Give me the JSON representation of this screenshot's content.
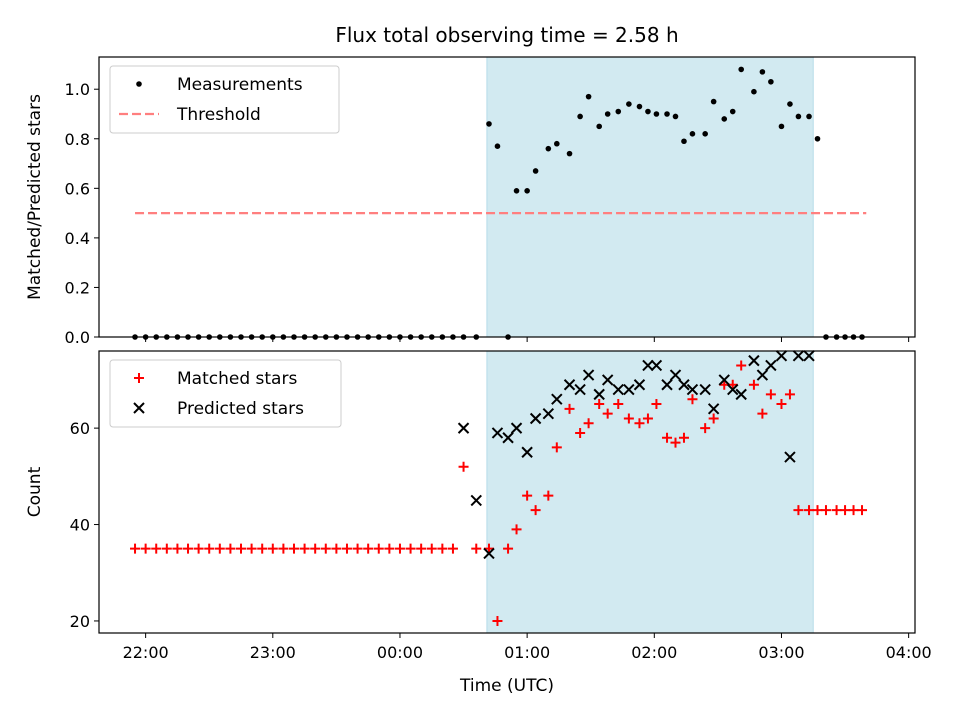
{
  "title": "Flux total observing time = 2.58 h",
  "xlabel": "Time (UTC)",
  "x_tick_labels": [
    "22:00",
    "23:00",
    "00:00",
    "01:00",
    "02:00",
    "03:00",
    "04:00"
  ],
  "colors": {
    "shade": "#add8e6",
    "threshold": "#ff7f7f",
    "matched": "#ff0000",
    "predicted": "#000000",
    "measurement": "#000000"
  },
  "chart_data": [
    {
      "type": "scatter",
      "ylabel": "Matched/Predicted stars",
      "xlim": [
        "21:38",
        "04:03"
      ],
      "ylim": [
        0,
        1.13
      ],
      "y_ticks": [
        "0.0",
        "0.2",
        "0.4",
        "0.6",
        "0.8",
        "1.0"
      ],
      "shaded_span": [
        "00:41",
        "03:15"
      ],
      "legend_position": "upper-left",
      "series": [
        {
          "name": "Measurements",
          "marker": "dot",
          "x": [
            "21:55",
            "22:00",
            "22:05",
            "22:10",
            "22:15",
            "22:20",
            "22:25",
            "22:30",
            "22:35",
            "22:40",
            "22:45",
            "22:50",
            "22:55",
            "23:00",
            "23:05",
            "23:10",
            "23:15",
            "23:20",
            "23:25",
            "23:30",
            "23:35",
            "23:40",
            "23:45",
            "23:50",
            "23:55",
            "00:00",
            "00:05",
            "00:10",
            "00:15",
            "00:20",
            "00:25",
            "00:30",
            "00:36",
            "00:42",
            "00:46",
            "00:51",
            "00:55",
            "01:00",
            "01:04",
            "01:10",
            "01:14",
            "01:20",
            "01:25",
            "01:29",
            "01:34",
            "01:38",
            "01:43",
            "01:48",
            "01:53",
            "01:57",
            "02:01",
            "02:06",
            "02:10",
            "02:14",
            "02:18",
            "02:24",
            "02:28",
            "02:33",
            "02:37",
            "02:41",
            "02:47",
            "02:51",
            "02:55",
            "03:00",
            "03:04",
            "03:08",
            "03:13",
            "03:17",
            "03:21",
            "03:26",
            "03:30",
            "03:34",
            "03:38"
          ],
          "y": [
            0,
            0,
            0,
            0,
            0,
            0,
            0,
            0,
            0,
            0,
            0,
            0,
            0,
            0,
            0,
            0,
            0,
            0,
            0,
            0,
            0,
            0,
            0,
            0,
            0,
            0,
            0,
            0,
            0,
            0,
            0,
            0,
            0,
            0.86,
            0.77,
            0,
            0.59,
            0.59,
            0.67,
            0.76,
            0.78,
            0.74,
            0.89,
            0.97,
            0.85,
            0.9,
            0.91,
            0.94,
            0.93,
            0.91,
            0.9,
            0.9,
            0.89,
            0.79,
            0.82,
            0.82,
            0.95,
            0.88,
            0.91,
            1.08,
            0.99,
            1.07,
            1.03,
            0.85,
            0.94,
            0.89,
            0.89,
            0.8,
            0,
            0,
            0,
            0,
            0
          ]
        },
        {
          "name": "Threshold",
          "marker": "dashed-line",
          "x": [
            "21:55",
            "03:40"
          ],
          "y": [
            0.5,
            0.5
          ]
        }
      ]
    },
    {
      "type": "scatter",
      "ylabel": "Count",
      "xlim": [
        "21:38",
        "04:03"
      ],
      "ylim": [
        17.5,
        76
      ],
      "y_ticks": [
        "20",
        "40",
        "60"
      ],
      "shaded_span": [
        "00:41",
        "03:15"
      ],
      "legend_position": "upper-left",
      "series": [
        {
          "name": "Matched stars",
          "marker": "plus",
          "x": [
            "21:55",
            "22:00",
            "22:05",
            "22:10",
            "22:15",
            "22:20",
            "22:25",
            "22:30",
            "22:35",
            "22:40",
            "22:45",
            "22:50",
            "22:55",
            "23:00",
            "23:05",
            "23:10",
            "23:15",
            "23:20",
            "23:25",
            "23:30",
            "23:35",
            "23:40",
            "23:45",
            "23:50",
            "23:55",
            "00:00",
            "00:05",
            "00:10",
            "00:15",
            "00:20",
            "00:25",
            "00:30",
            "00:36",
            "00:42",
            "00:46",
            "00:51",
            "00:55",
            "01:00",
            "01:04",
            "01:10",
            "01:14",
            "01:20",
            "01:25",
            "01:29",
            "01:34",
            "01:38",
            "01:43",
            "01:48",
            "01:53",
            "01:57",
            "02:01",
            "02:06",
            "02:10",
            "02:14",
            "02:18",
            "02:24",
            "02:28",
            "02:33",
            "02:37",
            "02:41",
            "02:47",
            "02:51",
            "02:55",
            "03:00",
            "03:04",
            "03:08",
            "03:13",
            "03:17",
            "03:21",
            "03:26",
            "03:30",
            "03:34",
            "03:38"
          ],
          "y": [
            35,
            35,
            35,
            35,
            35,
            35,
            35,
            35,
            35,
            35,
            35,
            35,
            35,
            35,
            35,
            35,
            35,
            35,
            35,
            35,
            35,
            35,
            35,
            35,
            35,
            35,
            35,
            35,
            35,
            35,
            35,
            52,
            35,
            35,
            20,
            35,
            39,
            46,
            43,
            46,
            56,
            64,
            59,
            61,
            65,
            63,
            65,
            62,
            61,
            62,
            65,
            58,
            57,
            58,
            66,
            60,
            62,
            69,
            69,
            73,
            69,
            63,
            67,
            65,
            67,
            43,
            43,
            43,
            43,
            43,
            43,
            43,
            43
          ]
        },
        {
          "name": "Predicted stars",
          "marker": "x",
          "x": [
            "00:30",
            "00:36",
            "00:42",
            "00:46",
            "00:51",
            "00:55",
            "01:00",
            "01:04",
            "01:10",
            "01:14",
            "01:20",
            "01:25",
            "01:29",
            "01:34",
            "01:38",
            "01:43",
            "01:48",
            "01:53",
            "01:57",
            "02:01",
            "02:06",
            "02:10",
            "02:14",
            "02:18",
            "02:24",
            "02:28",
            "02:33",
            "02:37",
            "02:41",
            "02:47",
            "02:51",
            "02:55",
            "03:00",
            "03:04",
            "03:08",
            "03:13"
          ],
          "y": [
            60,
            45,
            34,
            59,
            58,
            60,
            55,
            62,
            63,
            66,
            69,
            68,
            71,
            67,
            70,
            68,
            68,
            69,
            73,
            73,
            69,
            71,
            69,
            68,
            68,
            64,
            70,
            68,
            67,
            74,
            71,
            73,
            75,
            54,
            75,
            75
          ]
        }
      ]
    }
  ]
}
